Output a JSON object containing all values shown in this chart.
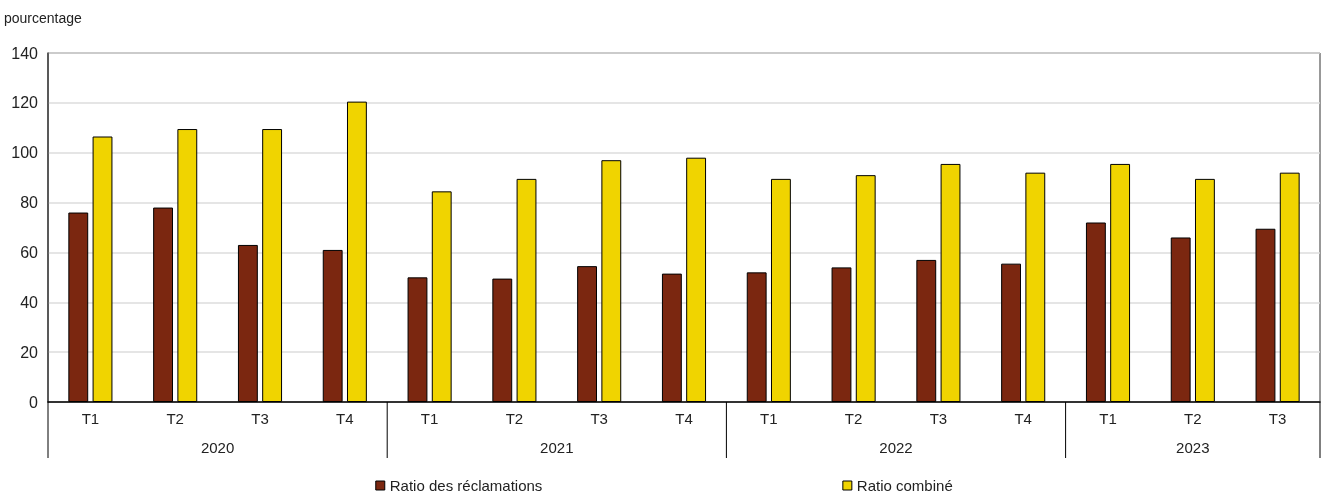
{
  "chart_data": {
    "type": "bar",
    "ylabel": "pourcentage",
    "categories": [
      "T1",
      "T2",
      "T3",
      "T4",
      "T1",
      "T2",
      "T3",
      "T4",
      "T1",
      "T2",
      "T3",
      "T4",
      "T1",
      "T2",
      "T3"
    ],
    "annotations": [
      "2020",
      "2021",
      "2022",
      "2023"
    ],
    "series": [
      {
        "name": "Ratio des réclamations",
        "color": "#7b2710",
        "values": [
          76,
          78,
          63,
          61,
          50,
          49.5,
          54.5,
          51.5,
          52,
          54,
          57,
          55.5,
          72,
          66,
          69.5
        ]
      },
      {
        "name": "Ratio combiné",
        "color": "#f0d400",
        "values": [
          106.5,
          109.5,
          109.5,
          120.5,
          84.5,
          89.5,
          97,
          98,
          89.5,
          91,
          95.5,
          92,
          95.5,
          89.5,
          92
        ]
      }
    ],
    "ylim": [
      0,
      140
    ],
    "yticks": [
      0,
      20,
      40,
      60,
      80,
      100,
      120,
      140
    ],
    "grid": "y",
    "legend": "bottom"
  }
}
